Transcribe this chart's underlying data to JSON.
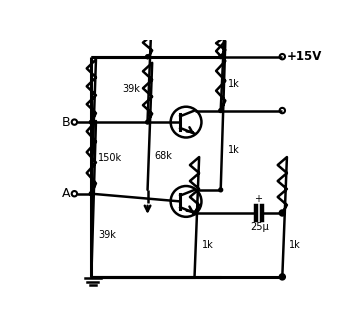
{
  "background": "#ffffff",
  "line_color": "#000000",
  "lw": 1.8,
  "lw_thick": 2.2,
  "cap_label": "25μ",
  "vcc_label": "+15V",
  "input_B": "B",
  "input_A": "A",
  "labels": {
    "R1": "39k",
    "R2": "1k",
    "R3": "150k",
    "R4": "68k",
    "R5": "1k",
    "R6": "39k",
    "R7": "1k",
    "R8": "1k"
  }
}
